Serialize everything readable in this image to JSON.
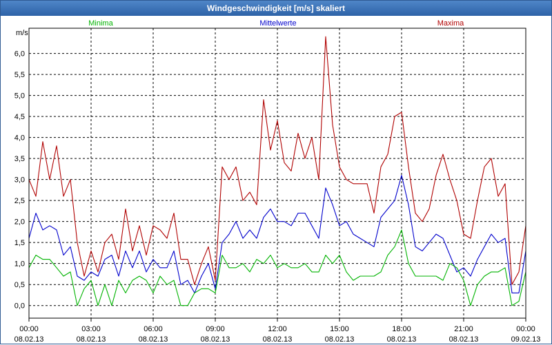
{
  "window": {
    "title": "Windgeschwindigkeit [m/s] skaliert"
  },
  "colors": {
    "min": "#00b300",
    "mean": "#0000cc",
    "max": "#b00000",
    "grid": "#000000",
    "frame": "#000000"
  },
  "chart_data": {
    "type": "line",
    "title": "Windgeschwindigkeit [m/s] skaliert",
    "ylabel": "m/s",
    "xlabel": "",
    "ylim": [
      -0.3,
      6.6
    ],
    "xlim": [
      0,
      24
    ],
    "yticks": [
      0.0,
      0.5,
      1.0,
      1.5,
      2.0,
      2.5,
      3.0,
      3.5,
      4.0,
      4.5,
      5.0,
      5.5,
      6.0
    ],
    "ytick_labels": [
      "0,0",
      "0,5",
      "1,0",
      "1,5",
      "2,0",
      "2,5",
      "3,0",
      "3,5",
      "4,0",
      "4,5",
      "5,0",
      "5,5",
      "6,0"
    ],
    "xticks": [
      {
        "x": 0,
        "time": "00:00",
        "date": "08.02.13"
      },
      {
        "x": 3,
        "time": "03:00",
        "date": "08.02.13"
      },
      {
        "x": 6,
        "time": "06:00",
        "date": "08.02.13"
      },
      {
        "x": 9,
        "time": "09:00",
        "date": "08.02.13"
      },
      {
        "x": 12,
        "time": "12:00",
        "date": "08.02.13"
      },
      {
        "x": 15,
        "time": "15:00",
        "date": "08.02.13"
      },
      {
        "x": 18,
        "time": "18:00",
        "date": "08.02.13"
      },
      {
        "x": 21,
        "time": "21:00",
        "date": "08.02.13"
      },
      {
        "x": 24,
        "time": "00:00",
        "date": "09.02.13"
      }
    ],
    "legend": [
      "Minima",
      "Mittelwerte",
      "Maxima"
    ],
    "grid": true,
    "x": [
      0.0,
      0.333,
      0.667,
      1.0,
      1.333,
      1.667,
      2.0,
      2.333,
      2.667,
      3.0,
      3.333,
      3.667,
      4.0,
      4.333,
      4.667,
      5.0,
      5.333,
      5.667,
      6.0,
      6.333,
      6.667,
      7.0,
      7.333,
      7.667,
      8.0,
      8.333,
      8.667,
      9.0,
      9.333,
      9.667,
      10.0,
      10.333,
      10.667,
      11.0,
      11.333,
      11.667,
      12.0,
      12.333,
      12.667,
      13.0,
      13.333,
      13.667,
      14.0,
      14.333,
      14.667,
      15.0,
      15.333,
      15.667,
      16.0,
      16.333,
      16.667,
      17.0,
      17.333,
      17.667,
      18.0,
      18.333,
      18.667,
      19.0,
      19.333,
      19.667,
      20.0,
      20.333,
      20.667,
      21.0,
      21.333,
      21.667,
      22.0,
      22.333,
      22.667,
      23.0,
      23.333,
      23.667,
      24.0
    ],
    "series": [
      {
        "name": "Maxima",
        "color": "#b00000",
        "values": [
          3.0,
          2.6,
          3.9,
          3.0,
          3.8,
          2.6,
          3.0,
          1.5,
          0.7,
          1.3,
          0.8,
          1.5,
          1.7,
          1.1,
          2.3,
          1.3,
          1.9,
          1.2,
          1.9,
          1.8,
          1.6,
          2.2,
          1.1,
          1.1,
          0.5,
          1.0,
          1.4,
          0.6,
          3.3,
          3.0,
          3.3,
          2.5,
          2.7,
          2.4,
          4.9,
          3.7,
          4.4,
          3.4,
          3.2,
          4.1,
          3.5,
          4.0,
          3.0,
          6.4,
          4.3,
          3.3,
          3.0,
          2.9,
          2.9,
          2.9,
          2.2,
          3.3,
          3.6,
          4.5,
          4.6,
          3.3,
          2.2,
          2.0,
          2.3,
          3.1,
          3.6,
          3.0,
          2.5,
          1.7,
          1.6,
          2.5,
          3.3,
          3.5,
          2.6,
          2.9,
          0.5,
          0.8,
          1.9
        ]
      },
      {
        "name": "Mittelwerte",
        "color": "#0000cc",
        "values": [
          1.6,
          2.2,
          1.8,
          1.9,
          1.8,
          1.2,
          1.4,
          0.7,
          0.6,
          0.8,
          0.7,
          1.1,
          1.2,
          0.7,
          1.3,
          0.9,
          1.3,
          0.8,
          1.1,
          0.9,
          0.9,
          1.3,
          0.5,
          0.6,
          0.3,
          0.7,
          1.0,
          0.4,
          1.5,
          1.7,
          2.0,
          1.6,
          1.8,
          1.6,
          2.1,
          2.3,
          2.0,
          2.0,
          1.9,
          2.2,
          2.2,
          1.9,
          1.6,
          2.8,
          2.4,
          1.9,
          2.0,
          1.7,
          1.6,
          1.5,
          1.4,
          2.1,
          2.3,
          2.5,
          3.1,
          2.4,
          1.4,
          1.3,
          1.5,
          1.7,
          1.6,
          1.2,
          0.8,
          0.9,
          0.7,
          1.1,
          1.4,
          1.7,
          1.5,
          1.6,
          0.3,
          0.3,
          1.3
        ]
      },
      {
        "name": "Minima",
        "color": "#00b300",
        "values": [
          0.9,
          1.2,
          1.1,
          1.1,
          0.9,
          0.7,
          0.8,
          0.0,
          0.4,
          0.6,
          0.0,
          0.5,
          0.0,
          0.6,
          0.3,
          0.6,
          0.7,
          0.6,
          0.3,
          0.7,
          0.5,
          0.6,
          0.0,
          0.0,
          0.3,
          0.4,
          0.4,
          0.3,
          1.2,
          0.9,
          0.9,
          1.0,
          0.8,
          1.1,
          1.0,
          1.2,
          0.9,
          1.0,
          0.9,
          0.9,
          1.0,
          0.8,
          0.8,
          1.2,
          1.0,
          1.2,
          0.8,
          0.6,
          0.7,
          0.7,
          0.7,
          0.8,
          1.2,
          1.4,
          1.8,
          1.0,
          0.7,
          0.7,
          0.7,
          0.7,
          0.6,
          1.0,
          0.9,
          0.6,
          0.0,
          0.5,
          0.7,
          0.8,
          0.8,
          0.9,
          0.0,
          0.1,
          0.8
        ]
      }
    ]
  }
}
